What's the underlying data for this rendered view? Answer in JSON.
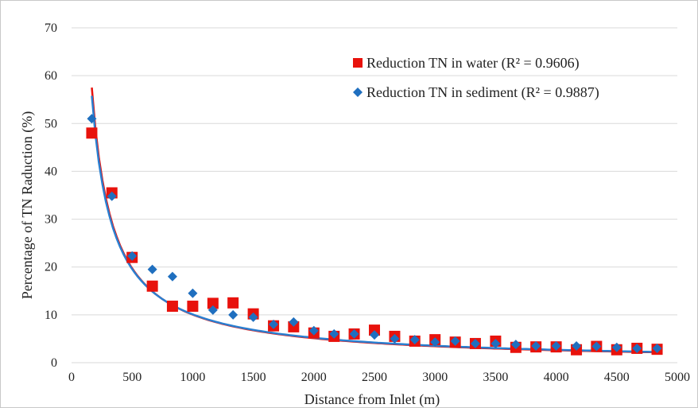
{
  "chart_data": {
    "type": "scatter",
    "title": "",
    "xlabel": "Distance from Inlet (m)",
    "ylabel": "Percentage of TN Raduction (%)",
    "xlim": [
      0,
      5000
    ],
    "ylim": [
      0,
      70
    ],
    "xticks": [
      0,
      500,
      1000,
      1500,
      2000,
      2500,
      3000,
      3500,
      4000,
      4500,
      5000
    ],
    "yticks": [
      0,
      10,
      20,
      30,
      40,
      50,
      60,
      70
    ],
    "grid": "horizontal",
    "legend_position": "top-right",
    "series": [
      {
        "name": "Reduction TN in water (R² = 0.9606)",
        "marker": "square",
        "color": "#e8120c",
        "trend_color": "#e8120c",
        "x": [
          167,
          333,
          500,
          667,
          833,
          1000,
          1167,
          1333,
          1500,
          1667,
          1833,
          2000,
          2167,
          2333,
          2500,
          2667,
          2833,
          3000,
          3167,
          3333,
          3500,
          3667,
          3833,
          4000,
          4167,
          4333,
          4500,
          4667,
          4833
        ],
        "y": [
          48,
          35.5,
          22,
          16,
          11.8,
          11.8,
          12.4,
          12.5,
          10.2,
          7.7,
          7.5,
          6.2,
          5.5,
          6,
          6.8,
          5.5,
          4.5,
          4.8,
          4.3,
          4,
          4.5,
          3.2,
          3.3,
          3.3,
          2.7,
          3.4,
          2.7,
          3,
          2.8
        ]
      },
      {
        "name": "Reduction TN in sediment (R² = 0.9887)",
        "marker": "diamond",
        "color": "#1f6fbf",
        "trend_color": "#2a7fd0",
        "x": [
          167,
          333,
          500,
          667,
          833,
          1000,
          1167,
          1333,
          1500,
          1667,
          1833,
          2000,
          2167,
          2333,
          2500,
          2667,
          2833,
          3000,
          3167,
          3333,
          3500,
          3667,
          3833,
          4000,
          4167,
          4333,
          4500,
          4667,
          4833
        ],
        "y": [
          51,
          34.8,
          22.3,
          19.5,
          18,
          14.5,
          11,
          10,
          9.5,
          8,
          8.5,
          6.7,
          6,
          6,
          5.8,
          5,
          4.8,
          4.3,
          4.5,
          4,
          4,
          3.8,
          3.5,
          3.5,
          3.5,
          3.4,
          3.2,
          3,
          3
        ]
      }
    ],
    "trendlines": [
      {
        "series": 0,
        "type": "power",
        "coef": 8450,
        "exp": -0.975
      },
      {
        "series": 1,
        "type": "power",
        "coef": 7400,
        "exp": -0.955
      }
    ]
  }
}
